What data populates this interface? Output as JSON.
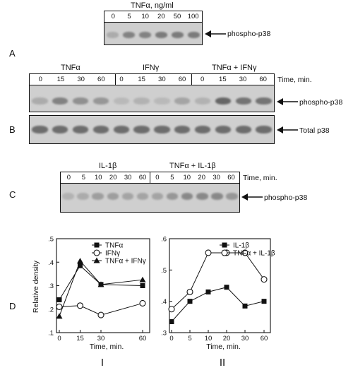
{
  "panelA": {
    "letter": "A",
    "title": "TNFα, ng/ml",
    "lanes": [
      "0",
      "5",
      "10",
      "20",
      "50",
      "100"
    ],
    "bands": [
      0.25,
      0.55,
      0.55,
      0.6,
      0.6,
      0.6
    ],
    "label": "phospho-p38"
  },
  "panelB": {
    "letter": "B",
    "groups": [
      "TNFα",
      "IFNγ",
      "TNFα + IFNγ"
    ],
    "lanes": [
      "0",
      "15",
      "30",
      "60",
      "0",
      "15",
      "30",
      "60",
      "0",
      "15",
      "30",
      "60"
    ],
    "time_label": "Time, min.",
    "phospho_label": "phospho-p38",
    "total_label": "Total p38",
    "phospho_bands": [
      0.25,
      0.55,
      0.45,
      0.4,
      0.15,
      0.2,
      0.15,
      0.3,
      0.2,
      0.75,
      0.65,
      0.65
    ],
    "total_bands": [
      0.7,
      0.7,
      0.7,
      0.7,
      0.7,
      0.7,
      0.7,
      0.7,
      0.7,
      0.7,
      0.7,
      0.7
    ]
  },
  "panelC": {
    "letter": "C",
    "groups": [
      "IL-1β",
      "TNFα + IL-1β"
    ],
    "lanes": [
      "0",
      "5",
      "10",
      "20",
      "30",
      "60",
      "0",
      "5",
      "10",
      "20",
      "30",
      "60"
    ],
    "time_label": "Time, min.",
    "label": "phospho-p38",
    "bands": [
      0.2,
      0.25,
      0.35,
      0.35,
      0.3,
      0.3,
      0.3,
      0.4,
      0.5,
      0.5,
      0.5,
      0.4
    ]
  },
  "panelD": {
    "letter": "D",
    "ylabel": "Relative density",
    "chart_labels": [
      "I",
      "II"
    ]
  },
  "chart_data": [
    {
      "type": "line",
      "xlabel": "Time, min.",
      "ylabel": "Relative density",
      "x": [
        0,
        15,
        30,
        60
      ],
      "xticks": [
        "0",
        "15",
        "30",
        "60"
      ],
      "yticks": [
        ".1",
        ".2",
        ".3",
        ".4",
        ".5"
      ],
      "ylim": [
        0.1,
        0.5
      ],
      "xlim": [
        0,
        60
      ],
      "series": [
        {
          "name": "TNFα",
          "marker": "square-filled",
          "values": [
            0.24,
            0.385,
            0.305,
            0.3
          ]
        },
        {
          "name": "IFNγ",
          "marker": "circle-open",
          "values": [
            0.21,
            0.215,
            0.175,
            0.225
          ]
        },
        {
          "name": "TNFα + IFNγ",
          "marker": "triangle-filled",
          "values": [
            0.17,
            0.405,
            0.305,
            0.325
          ]
        }
      ]
    },
    {
      "type": "line",
      "xlabel": "Time, min.",
      "x": [
        0,
        5,
        10,
        20,
        30,
        60
      ],
      "xticks": [
        "0",
        "5",
        "10",
        "20",
        "30",
        "60"
      ],
      "yticks": [
        ".3",
        ".4",
        ".5",
        ".6"
      ],
      "ylim": [
        0.3,
        0.6
      ],
      "xlim": [
        0,
        60
      ],
      "series": [
        {
          "name": "IL-1β",
          "marker": "square-filled",
          "values": [
            0.335,
            0.4,
            0.43,
            0.445,
            0.385,
            0.4
          ]
        },
        {
          "name": "TNFα + IL-1β",
          "marker": "circle-open",
          "values": [
            0.375,
            0.43,
            0.555,
            0.555,
            0.555,
            0.47
          ]
        }
      ]
    }
  ]
}
